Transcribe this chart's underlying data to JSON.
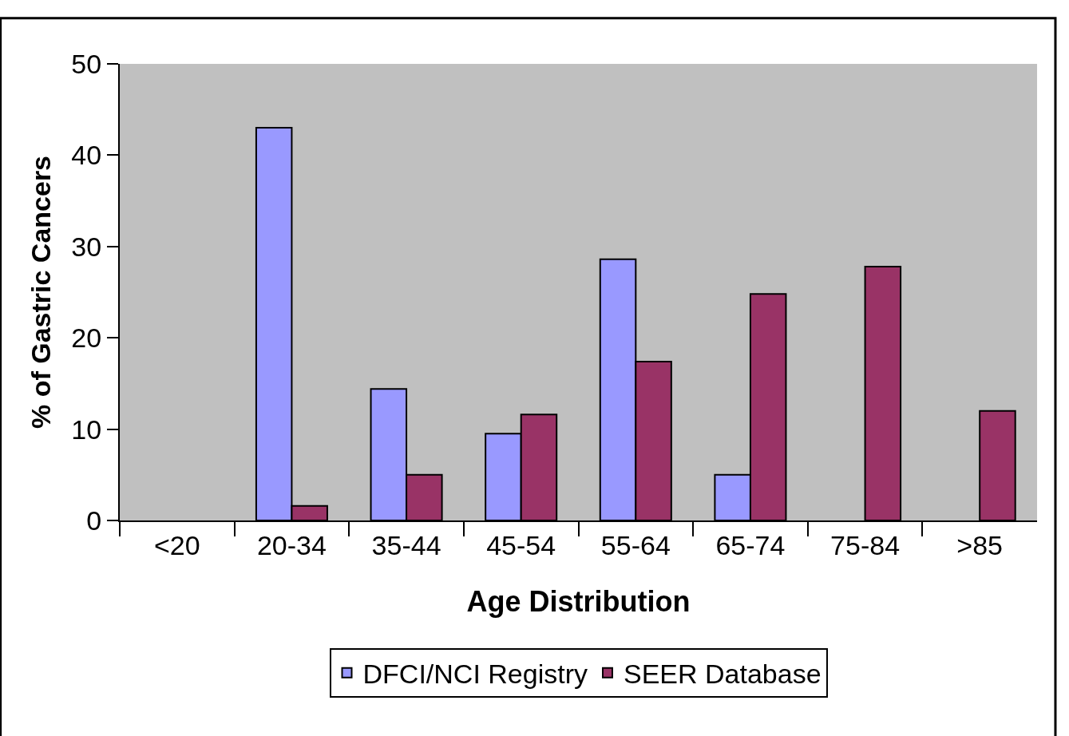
{
  "chart_data": {
    "type": "bar",
    "xlabel": "Age Distribution",
    "ylabel": "% of Gastric Cancers",
    "categories": [
      "<20",
      "20-34",
      "35-44",
      "45-54",
      "55-64",
      "65-74",
      "75-84",
      ">85"
    ],
    "series": [
      {
        "name": "DFCI/NCI Registry",
        "color": "#9999ff",
        "values": [
          null,
          43,
          14.4,
          9.5,
          28.6,
          5,
          null,
          null
        ]
      },
      {
        "name": "SEER Database",
        "color": "#993366",
        "values": [
          null,
          1.6,
          5,
          11.6,
          17.4,
          24.8,
          27.8,
          12
        ]
      }
    ],
    "ylim": [
      0,
      50
    ],
    "yticks": [
      0,
      10,
      20,
      30,
      40,
      50
    ],
    "grid": false,
    "legend": "bottom"
  }
}
